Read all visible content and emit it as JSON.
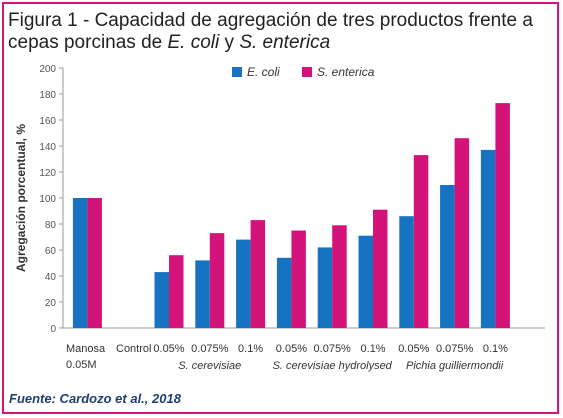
{
  "title": {
    "part1": "Figura 1 - Capacidad de agregación de tres productos frente a cepas porcinas de ",
    "ecoli": "E. coli",
    "mid": " y ",
    "senterica": "S. enterica"
  },
  "source": "Fuente: Cardozo et al., 2018",
  "colors": {
    "ecoli": "#1673c2",
    "senterica": "#d4137a",
    "frame": "#d8137a"
  },
  "chart_data": {
    "type": "bar",
    "ylabel": "Agregación porcentual, %",
    "ylim": [
      0,
      200
    ],
    "yticks": [
      0,
      20,
      40,
      60,
      80,
      100,
      120,
      140,
      160,
      180,
      200
    ],
    "grid": false,
    "legend_position": "top",
    "categories": [
      "Manosa 0.05M",
      "Control",
      "0.05%",
      "0.075%",
      "0.1%",
      "0.05%",
      "0.075%",
      "0.1%",
      "0.05%",
      "0.075%",
      "0.1%"
    ],
    "series": [
      {
        "name": "E. coli",
        "values": [
          100,
          0,
          43,
          52,
          68,
          54,
          62,
          71,
          86,
          110,
          137
        ]
      },
      {
        "name": "S. enterica",
        "values": [
          100,
          0,
          56,
          73,
          83,
          75,
          79,
          91,
          133,
          146,
          173
        ]
      }
    ],
    "group_labels": [
      "S. cerevisiae",
      "S. cerevisiae hydrolysed",
      "Pichia guilliermondii"
    ]
  }
}
